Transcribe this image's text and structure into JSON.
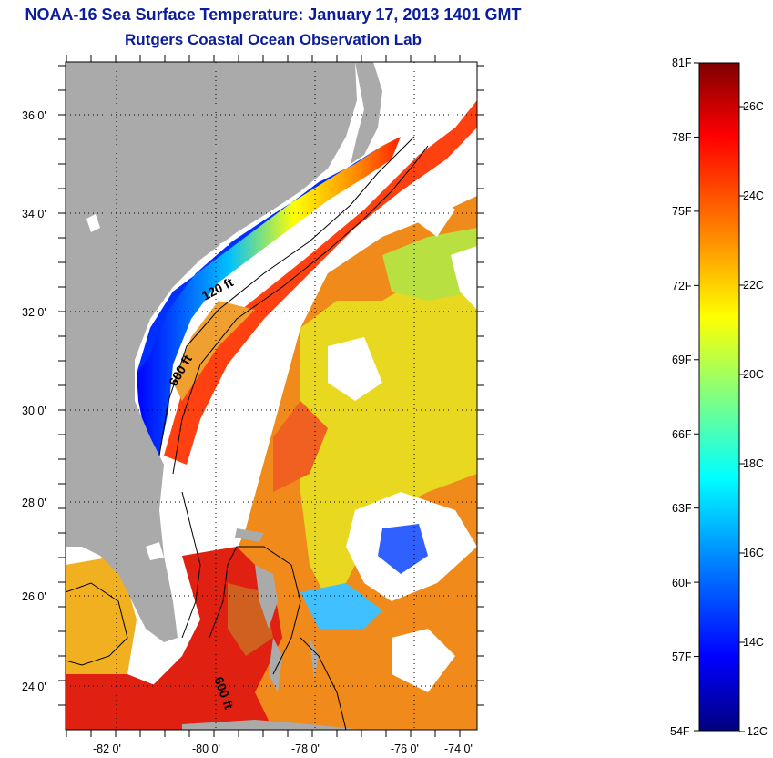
{
  "header": {
    "title": "NOAA-16 Sea Surface Temperature:  January 17, 2013 1401 GMT",
    "subtitle": "Rutgers Coastal Ocean Observation Lab"
  },
  "map": {
    "lat_labels": [
      "36 0'",
      "34 0'",
      "32 0'",
      "30 0'",
      "28 0'",
      "26 0'",
      "24 0'"
    ],
    "lon_labels": [
      "-82 0'",
      "-80 0'",
      "-78 0'",
      "-76 0'",
      "-74 0'"
    ],
    "contour_labels": [
      "120 ft",
      "600 ft",
      "600 ft"
    ]
  },
  "colorbar": {
    "f_labels": [
      "81F",
      "78F",
      "75F",
      "72F",
      "69F",
      "66F",
      "63F",
      "60F",
      "57F",
      "54F"
    ],
    "c_labels": [
      "26C",
      "24C",
      "22C",
      "20C",
      "18C",
      "16C",
      "14C",
      "12C"
    ],
    "colors": [
      "#00007f",
      "#0000ff",
      "#0080ff",
      "#00ffff",
      "#80ff80",
      "#ffff00",
      "#ff8000",
      "#ff0000",
      "#7f0000"
    ]
  },
  "colors": {
    "land": "#aaaaaa",
    "title": "#0b1d9a"
  }
}
